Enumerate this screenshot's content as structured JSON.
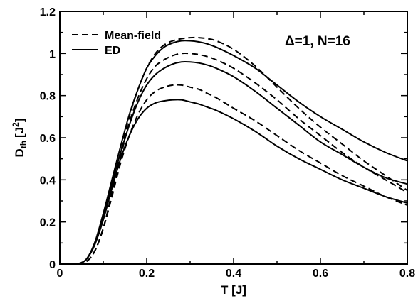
{
  "chart_data": {
    "type": "line",
    "xlabel": "T [J]",
    "ylabel": "D",
    "ylabel_sub": "th",
    "ylabel_unit": "[J",
    "ylabel_unit_sup": "2",
    "ylabel_unit_end": "]",
    "xlim": [
      0,
      0.8
    ],
    "ylim": [
      0,
      1.2
    ],
    "x_ticks": [
      0,
      0.2,
      0.4,
      0.6,
      0.8
    ],
    "x_tick_labels": [
      "0",
      "0.2",
      "0.4",
      "0.6",
      "0.8"
    ],
    "y_ticks": [
      0,
      0.2,
      0.4,
      0.6,
      0.8,
      1.0,
      1.2
    ],
    "y_tick_labels": [
      "0",
      "0.2",
      "0.4",
      "0.6",
      "0.8",
      "1",
      "1.2"
    ],
    "grid": false,
    "legend_position": "top-left",
    "legend": [
      {
        "label": "Mean-field",
        "style": "dashed"
      },
      {
        "label": "ED",
        "style": "solid"
      }
    ],
    "annotation": "Δ=1, N=16",
    "series": [
      {
        "style": "dashed",
        "x": [
          0.04,
          0.06,
          0.08,
          0.1,
          0.12,
          0.14,
          0.16,
          0.18,
          0.2,
          0.22,
          0.24,
          0.26,
          0.28,
          0.3,
          0.32,
          0.34,
          0.36,
          0.4,
          0.45,
          0.5,
          0.55,
          0.6,
          0.65,
          0.7,
          0.75,
          0.8
        ],
        "y": [
          0.0,
          0.01,
          0.06,
          0.17,
          0.34,
          0.53,
          0.7,
          0.83,
          0.93,
          1.0,
          1.04,
          1.06,
          1.07,
          1.075,
          1.075,
          1.07,
          1.06,
          1.02,
          0.94,
          0.84,
          0.74,
          0.65,
          0.57,
          0.49,
          0.42,
          0.35
        ]
      },
      {
        "style": "dashed",
        "x": [
          0.04,
          0.06,
          0.08,
          0.1,
          0.12,
          0.14,
          0.16,
          0.18,
          0.2,
          0.22,
          0.24,
          0.26,
          0.28,
          0.3,
          0.32,
          0.34,
          0.36,
          0.4,
          0.45,
          0.5,
          0.55,
          0.6,
          0.65,
          0.7,
          0.75,
          0.8
        ],
        "y": [
          0.0,
          0.01,
          0.06,
          0.17,
          0.33,
          0.51,
          0.67,
          0.79,
          0.88,
          0.94,
          0.97,
          0.99,
          1.0,
          1.0,
          0.995,
          0.985,
          0.97,
          0.93,
          0.86,
          0.78,
          0.69,
          0.61,
          0.53,
          0.46,
          0.4,
          0.34
        ]
      },
      {
        "style": "dashed",
        "x": [
          0.04,
          0.06,
          0.08,
          0.1,
          0.12,
          0.14,
          0.16,
          0.18,
          0.2,
          0.22,
          0.24,
          0.26,
          0.28,
          0.3,
          0.32,
          0.34,
          0.36,
          0.4,
          0.45,
          0.5,
          0.55,
          0.6,
          0.65,
          0.7,
          0.75,
          0.8
        ],
        "y": [
          0.0,
          0.01,
          0.06,
          0.17,
          0.32,
          0.48,
          0.61,
          0.71,
          0.78,
          0.82,
          0.84,
          0.85,
          0.85,
          0.84,
          0.83,
          0.81,
          0.79,
          0.74,
          0.68,
          0.61,
          0.54,
          0.48,
          0.42,
          0.37,
          0.32,
          0.28
        ]
      },
      {
        "style": "solid",
        "x": [
          0.04,
          0.06,
          0.08,
          0.1,
          0.12,
          0.14,
          0.16,
          0.18,
          0.2,
          0.22,
          0.24,
          0.26,
          0.28,
          0.3,
          0.32,
          0.34,
          0.36,
          0.4,
          0.45,
          0.5,
          0.55,
          0.6,
          0.65,
          0.7,
          0.75,
          0.8
        ],
        "y": [
          0.0,
          0.02,
          0.1,
          0.24,
          0.4,
          0.56,
          0.71,
          0.83,
          0.93,
          0.99,
          1.03,
          1.05,
          1.06,
          1.06,
          1.055,
          1.045,
          1.03,
          0.99,
          0.93,
          0.85,
          0.77,
          0.7,
          0.64,
          0.58,
          0.53,
          0.49
        ]
      },
      {
        "style": "solid",
        "x": [
          0.04,
          0.06,
          0.08,
          0.1,
          0.12,
          0.14,
          0.16,
          0.18,
          0.2,
          0.22,
          0.24,
          0.26,
          0.28,
          0.3,
          0.32,
          0.34,
          0.36,
          0.4,
          0.45,
          0.5,
          0.55,
          0.6,
          0.65,
          0.7,
          0.75,
          0.8
        ],
        "y": [
          0.0,
          0.02,
          0.09,
          0.22,
          0.38,
          0.53,
          0.66,
          0.77,
          0.85,
          0.9,
          0.93,
          0.95,
          0.96,
          0.96,
          0.955,
          0.945,
          0.93,
          0.89,
          0.82,
          0.74,
          0.66,
          0.58,
          0.52,
          0.46,
          0.41,
          0.38
        ]
      },
      {
        "style": "solid",
        "x": [
          0.04,
          0.06,
          0.08,
          0.1,
          0.12,
          0.14,
          0.16,
          0.18,
          0.2,
          0.22,
          0.24,
          0.26,
          0.28,
          0.3,
          0.32,
          0.34,
          0.36,
          0.4,
          0.45,
          0.5,
          0.55,
          0.6,
          0.65,
          0.7,
          0.75,
          0.8
        ],
        "y": [
          0.0,
          0.02,
          0.09,
          0.21,
          0.36,
          0.5,
          0.61,
          0.69,
          0.74,
          0.765,
          0.775,
          0.78,
          0.78,
          0.77,
          0.76,
          0.745,
          0.73,
          0.69,
          0.63,
          0.56,
          0.5,
          0.45,
          0.4,
          0.36,
          0.32,
          0.29
        ]
      }
    ]
  }
}
